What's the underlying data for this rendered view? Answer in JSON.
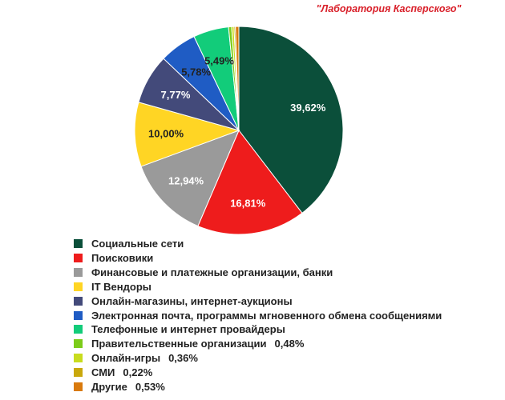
{
  "source_label": "\"Лаборатория Касперского\"",
  "chart_data": {
    "type": "pie",
    "slices": [
      {
        "name": "Социальные сети",
        "value": 39.62,
        "label": "39,62%",
        "color": "#0b4f3a",
        "label_color": "#ffffff"
      },
      {
        "name": "Поисковики",
        "value": 16.81,
        "label": "16,81%",
        "color": "#ee1c1c",
        "label_color": "#ffffff"
      },
      {
        "name": "Финансовые и платежные организации, банки",
        "value": 12.94,
        "label": "12,94%",
        "color": "#9a9a9a",
        "label_color": "#ffffff"
      },
      {
        "name": "IT Вендоры",
        "value": 10.0,
        "label": "10,00%",
        "color": "#ffd524",
        "label_color": "#222222"
      },
      {
        "name": "Онлайн-магазины, интернет-аукционы",
        "value": 7.77,
        "label": "7,77%",
        "color": "#434a7a",
        "label_color": "#ffffff"
      },
      {
        "name": "Электронная почта, программы мгновенного обмена сообщениями",
        "value": 5.78,
        "label": "5,78%",
        "color": "#1f5cc4",
        "label_color": "#222222"
      },
      {
        "name": "Телефонные и интернет провайдеры",
        "value": 5.49,
        "label": "5,49%",
        "color": "#12cc7a",
        "label_color": "#222222"
      },
      {
        "name": "Правительственные организации",
        "value": 0.48,
        "label": "0,48%",
        "color": "#7ccc1a",
        "label_color": "#222222"
      },
      {
        "name": "Онлайн-игры",
        "value": 0.36,
        "label": "0,36%",
        "color": "#c8dc1e",
        "label_color": "#222222"
      },
      {
        "name": "СМИ",
        "value": 0.22,
        "label": "0,22%",
        "color": "#c9a80c",
        "label_color": "#222222"
      },
      {
        "name": "Другие",
        "value": 0.53,
        "label": "0,53%",
        "color": "#d97a0d",
        "label_color": "#222222"
      }
    ],
    "legend_position": "bottom-left"
  }
}
